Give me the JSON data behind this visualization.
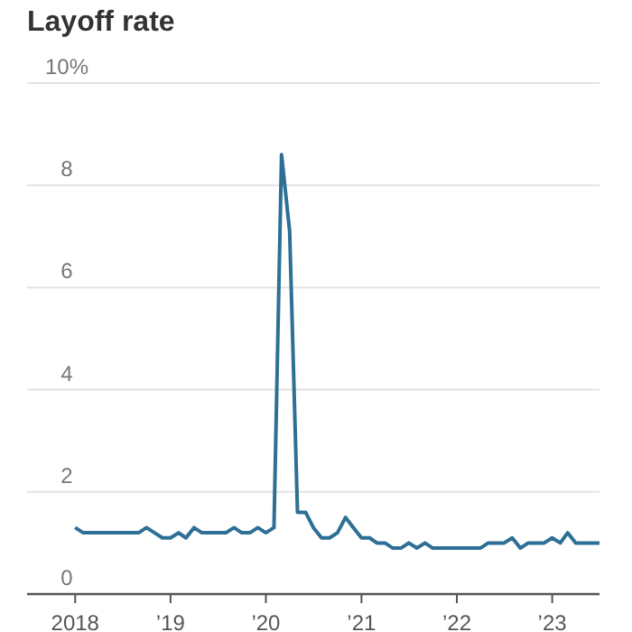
{
  "chart_data": {
    "type": "line",
    "title": "Layoff rate",
    "x": [
      "2018-01",
      "2018-02",
      "2018-03",
      "2018-04",
      "2018-05",
      "2018-06",
      "2018-07",
      "2018-08",
      "2018-09",
      "2018-10",
      "2018-11",
      "2018-12",
      "2019-01",
      "2019-02",
      "2019-03",
      "2019-04",
      "2019-05",
      "2019-06",
      "2019-07",
      "2019-08",
      "2019-09",
      "2019-10",
      "2019-11",
      "2019-12",
      "2020-01",
      "2020-02",
      "2020-03",
      "2020-04",
      "2020-05",
      "2020-06",
      "2020-07",
      "2020-08",
      "2020-09",
      "2020-10",
      "2020-11",
      "2020-12",
      "2021-01",
      "2021-02",
      "2021-03",
      "2021-04",
      "2021-05",
      "2021-06",
      "2021-07",
      "2021-08",
      "2021-09",
      "2021-10",
      "2021-11",
      "2021-12",
      "2022-01",
      "2022-02",
      "2022-03",
      "2022-04",
      "2022-05",
      "2022-06",
      "2022-07",
      "2022-08",
      "2022-09",
      "2022-10",
      "2022-11",
      "2022-12",
      "2023-01",
      "2023-02",
      "2023-03",
      "2023-04",
      "2023-05",
      "2023-06",
      "2023-07"
    ],
    "series": [
      {
        "color": "#2e6f95",
        "values": [
          1.3,
          1.2,
          1.2,
          1.2,
          1.2,
          1.2,
          1.2,
          1.2,
          1.2,
          1.3,
          1.2,
          1.1,
          1.1,
          1.2,
          1.1,
          1.3,
          1.2,
          1.2,
          1.2,
          1.2,
          1.3,
          1.2,
          1.2,
          1.3,
          1.2,
          1.3,
          8.6,
          7.1,
          1.6,
          1.6,
          1.3,
          1.1,
          1.1,
          1.2,
          1.5,
          1.3,
          1.1,
          1.1,
          1.0,
          1.0,
          0.9,
          0.9,
          1.0,
          0.9,
          1.0,
          0.9,
          0.9,
          0.9,
          0.9,
          0.9,
          0.9,
          0.9,
          1.0,
          1.0,
          1.0,
          1.1,
          0.9,
          1.0,
          1.0,
          1.0,
          1.1,
          1.0,
          1.2,
          1.0,
          1.0,
          1.0,
          1.0
        ]
      }
    ],
    "xlim": [
      "2017-07",
      "2023-07"
    ],
    "xticks": [
      {
        "value": "2018-01",
        "label": "2018"
      },
      {
        "value": "2019-01",
        "label": "’19"
      },
      {
        "value": "2020-01",
        "label": "’20"
      },
      {
        "value": "2021-01",
        "label": "’21"
      },
      {
        "value": "2022-01",
        "label": "’22"
      },
      {
        "value": "2023-01",
        "label": "’23"
      }
    ],
    "ylim": [
      0,
      10
    ],
    "yticks": [
      0,
      2,
      4,
      6,
      8,
      {
        "value": 10,
        "label": "10%"
      }
    ],
    "grid": "y",
    "line_style": "solid",
    "marker": "none"
  }
}
